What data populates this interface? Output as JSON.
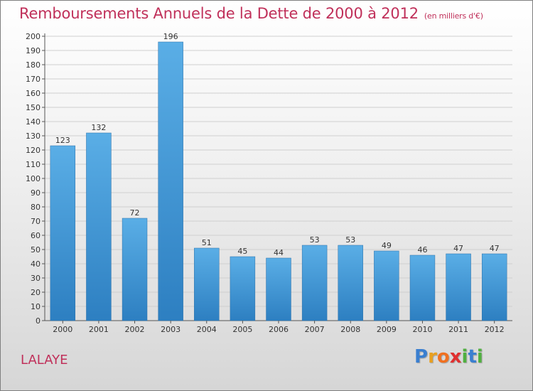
{
  "header": {
    "title": "Remboursements Annuels de la Dette de 2000 à 2012",
    "unit": "(en milliers d'€)"
  },
  "footer": {
    "place": "LALAYE",
    "logo_letters": [
      "P",
      "r",
      "o",
      "x",
      "i",
      "t",
      "i"
    ]
  },
  "colors": {
    "title": "#c0305a",
    "bar_top": "#5aaee6",
    "bar_bottom": "#2d7fc1",
    "logo": [
      "#3a7fd0",
      "#e8a020",
      "#f07020",
      "#e03030",
      "#50b040",
      "#3a7fd0",
      "#50b040"
    ]
  },
  "chart_data": {
    "type": "bar",
    "categories": [
      "2000",
      "2001",
      "2002",
      "2003",
      "2004",
      "2005",
      "2006",
      "2007",
      "2008",
      "2009",
      "2010",
      "2011",
      "2012"
    ],
    "values": [
      123,
      132,
      72,
      196,
      51,
      45,
      44,
      53,
      53,
      49,
      46,
      47,
      47
    ],
    "ylim": [
      0,
      200
    ],
    "ytick_step": 10,
    "grid": true,
    "data_labels": true
  }
}
